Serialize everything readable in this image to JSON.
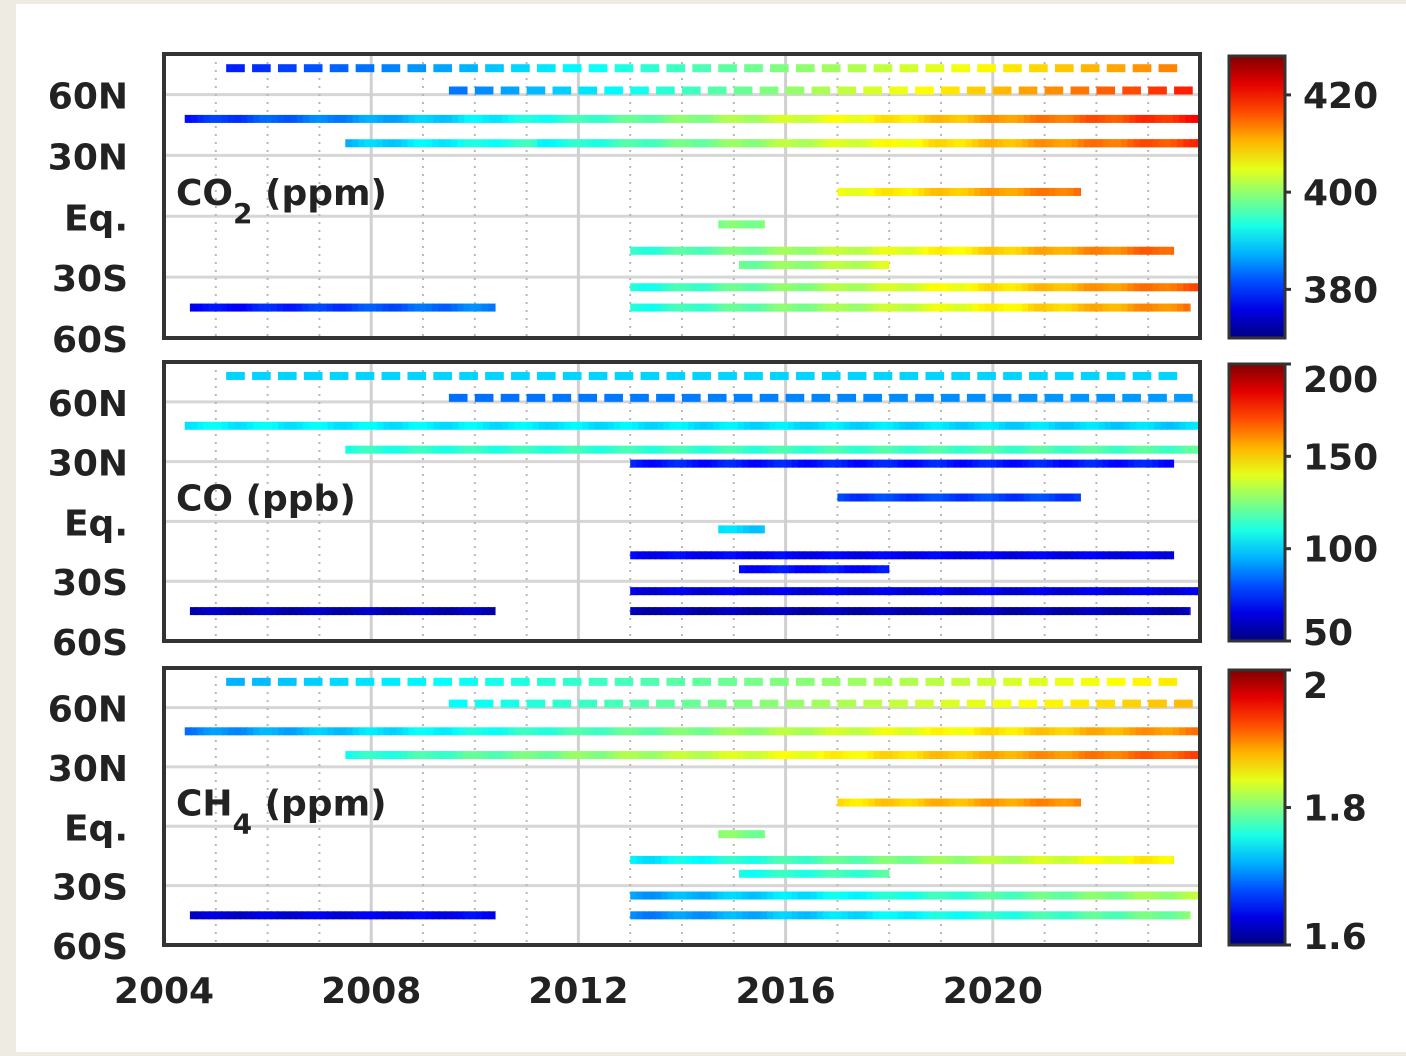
{
  "chart_data": [
    {
      "type": "heatmap",
      "title": "CO",
      "title_sub": "2",
      "title_unit": "(ppm)",
      "x_ticks": [
        "2004",
        "2008",
        "2012",
        "2016",
        "2020"
      ],
      "y_ticks": [
        "60N",
        "30N",
        "Eq.",
        "30S",
        "60S"
      ],
      "xlim": [
        2004,
        2024
      ],
      "ylim": [
        -60,
        80
      ],
      "colorbar": {
        "min": 370,
        "max": 428,
        "ticks": [
          380,
          400,
          420
        ]
      },
      "tracks": [
        {
          "lat": 73,
          "start": 2005.2,
          "end": 2023.6,
          "v0": 379,
          "v1": 414,
          "gap": true
        },
        {
          "lat": 62,
          "start": 2009.5,
          "end": 2023.9,
          "v0": 384,
          "v1": 420,
          "gap": true
        },
        {
          "lat": 48,
          "start": 2004.4,
          "end": 2024.0,
          "v0": 379,
          "v1": 420
        },
        {
          "lat": 36,
          "start": 2007.5,
          "end": 2024.0,
          "v0": 388,
          "v1": 418
        },
        {
          "lat": 36,
          "start": 2011.2,
          "end": 2024.0,
          "v0": 392,
          "v1": 418
        },
        {
          "lat": 12,
          "start": 2017.0,
          "end": 2021.7,
          "v0": 405,
          "v1": 415
        },
        {
          "lat": -4,
          "start": 2014.7,
          "end": 2015.6,
          "v0": 398,
          "v1": 400
        },
        {
          "lat": -17,
          "start": 2013.0,
          "end": 2023.5,
          "v0": 394,
          "v1": 416
        },
        {
          "lat": -24,
          "start": 2015.1,
          "end": 2018.0,
          "v0": 398,
          "v1": 404
        },
        {
          "lat": -35,
          "start": 2013.0,
          "end": 2024.0,
          "v0": 393,
          "v1": 416
        },
        {
          "lat": -45,
          "start": 2004.5,
          "end": 2010.4,
          "v0": 377,
          "v1": 385
        },
        {
          "lat": -45,
          "start": 2013.0,
          "end": 2023.8,
          "v0": 393,
          "v1": 414
        }
      ]
    },
    {
      "type": "heatmap",
      "title": "CO",
      "title_sub": "",
      "title_unit": "(ppb)",
      "x_ticks": [
        "2004",
        "2008",
        "2012",
        "2016",
        "2020"
      ],
      "y_ticks": [
        "60N",
        "30N",
        "Eq.",
        "30S",
        "60S"
      ],
      "xlim": [
        2004,
        2024
      ],
      "ylim": [
        -60,
        80
      ],
      "colorbar": {
        "min": 50,
        "max": 200,
        "ticks": [
          50,
          100,
          150,
          200
        ]
      },
      "tracks": [
        {
          "lat": 73,
          "start": 2005.2,
          "end": 2023.6,
          "v0": 100,
          "v1": 100,
          "gap": true
        },
        {
          "lat": 62,
          "start": 2009.5,
          "end": 2023.9,
          "v0": 85,
          "v1": 92,
          "gap": true
        },
        {
          "lat": 48,
          "start": 2004.4,
          "end": 2024.0,
          "v0": 105,
          "v1": 100
        },
        {
          "lat": 36,
          "start": 2007.5,
          "end": 2024.0,
          "v0": 112,
          "v1": 118
        },
        {
          "lat": 29,
          "start": 2013.0,
          "end": 2023.5,
          "v0": 72,
          "v1": 72
        },
        {
          "lat": 12,
          "start": 2017.0,
          "end": 2021.7,
          "v0": 78,
          "v1": 78
        },
        {
          "lat": -4,
          "start": 2014.7,
          "end": 2015.6,
          "v0": 100,
          "v1": 100
        },
        {
          "lat": -17,
          "start": 2013.0,
          "end": 2023.5,
          "v0": 68,
          "v1": 66
        },
        {
          "lat": -24,
          "start": 2015.1,
          "end": 2018.0,
          "v0": 70,
          "v1": 70
        },
        {
          "lat": -35,
          "start": 2013.0,
          "end": 2024.0,
          "v0": 64,
          "v1": 64
        },
        {
          "lat": -45,
          "start": 2004.5,
          "end": 2010.4,
          "v0": 58,
          "v1": 58
        },
        {
          "lat": -45,
          "start": 2013.0,
          "end": 2023.8,
          "v0": 57,
          "v1": 57
        }
      ]
    },
    {
      "type": "heatmap",
      "title": "CH",
      "title_sub": "4",
      "title_unit": "(ppm)",
      "x_ticks": [
        "2004",
        "2008",
        "2012",
        "2016",
        "2020"
      ],
      "y_ticks": [
        "60N",
        "30N",
        "Eq.",
        "30S",
        "60S"
      ],
      "xlim": [
        2004,
        2024
      ],
      "ylim": [
        -60,
        80
      ],
      "colorbar": {
        "min": 1.6,
        "max": 2.0,
        "ticks": [
          1.6,
          1.8,
          2
        ]
      },
      "tracks": [
        {
          "lat": 73,
          "start": 2005.2,
          "end": 2023.6,
          "v0": 1.72,
          "v1": 1.86,
          "gap": true
        },
        {
          "lat": 62,
          "start": 2009.5,
          "end": 2023.9,
          "v0": 1.75,
          "v1": 1.88,
          "gap": true
        },
        {
          "lat": 48,
          "start": 2004.4,
          "end": 2024.0,
          "v0": 1.7,
          "v1": 1.9
        },
        {
          "lat": 36,
          "start": 2007.5,
          "end": 2024.0,
          "v0": 1.76,
          "v1": 1.92
        },
        {
          "lat": 12,
          "start": 2017.0,
          "end": 2021.7,
          "v0": 1.86,
          "v1": 1.9
        },
        {
          "lat": -4,
          "start": 2014.7,
          "end": 2015.6,
          "v0": 1.8,
          "v1": 1.8
        },
        {
          "lat": -17,
          "start": 2013.0,
          "end": 2023.5,
          "v0": 1.74,
          "v1": 1.86
        },
        {
          "lat": -24,
          "start": 2015.1,
          "end": 2018.0,
          "v0": 1.76,
          "v1": 1.78
        },
        {
          "lat": -35,
          "start": 2013.0,
          "end": 2024.0,
          "v0": 1.71,
          "v1": 1.82
        },
        {
          "lat": -45,
          "start": 2004.5,
          "end": 2010.4,
          "v0": 1.63,
          "v1": 1.65
        },
        {
          "lat": -45,
          "start": 2013.0,
          "end": 2023.8,
          "v0": 1.7,
          "v1": 1.8
        }
      ]
    }
  ]
}
